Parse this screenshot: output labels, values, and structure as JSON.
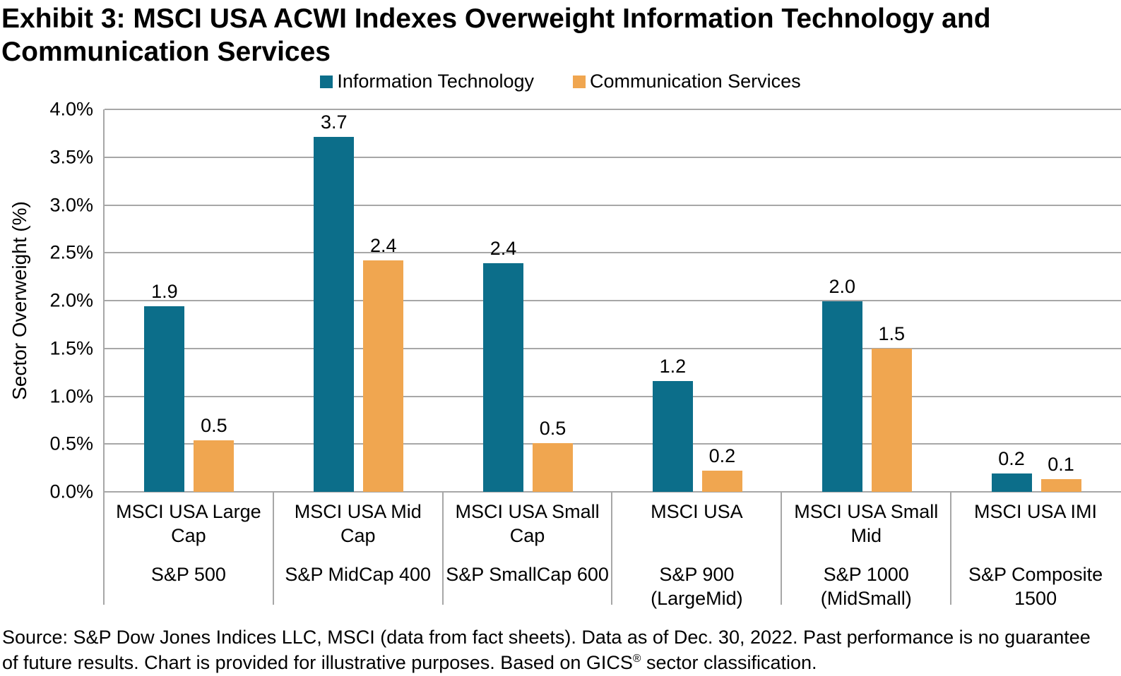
{
  "title": "Exhibit 3: MSCI USA ACWI Indexes Overweight Information Technology and\nCommunication Services",
  "colors": {
    "information_technology": "#0C6E8A",
    "communication_services": "#F0A650",
    "gridline": "#A7A7A7",
    "text": "#000000",
    "background": "#FFFFFF"
  },
  "chart_data": {
    "type": "bar",
    "title": "Exhibit 3: MSCI USA ACWI Indexes Overweight Information Technology and Communication Services",
    "xlabel": "",
    "ylabel": "Sector Overweight (%)",
    "ylim": [
      0,
      4.0
    ],
    "ytick_step": 0.5,
    "yticks_top_to_bottom": [
      "4.0%",
      "3.5%",
      "3.0%",
      "2.5%",
      "2.0%",
      "1.5%",
      "1.0%",
      "0.5%",
      "0.0%"
    ],
    "grid": true,
    "legend_position": "top-center",
    "categories": [
      {
        "index": "MSCI USA Large\nCap",
        "benchmark": "S&P 500"
      },
      {
        "index": "MSCI USA Mid\nCap",
        "benchmark": "S&P MidCap 400"
      },
      {
        "index": "MSCI USA Small\nCap",
        "benchmark": "S&P SmallCap 600"
      },
      {
        "index": "MSCI USA",
        "benchmark": "S&P 900\n(LargeMid)"
      },
      {
        "index": "MSCI USA Small\nMid",
        "benchmark": "S&P 1000\n(MidSmall)"
      },
      {
        "index": "MSCI USA IMI",
        "benchmark": "S&P Composite\n1500"
      }
    ],
    "series": [
      {
        "name": "Information Technology",
        "color": "#0C6E8A",
        "values": [
          1.94,
          3.71,
          2.39,
          1.16,
          1.99,
          0.19
        ],
        "labels": [
          "1.9",
          "3.7",
          "2.4",
          "1.2",
          "2.0",
          "0.2"
        ]
      },
      {
        "name": "Communication Services",
        "color": "#F0A650",
        "values": [
          0.54,
          2.42,
          0.51,
          0.22,
          1.5,
          0.13
        ],
        "labels": [
          "0.5",
          "2.4",
          "0.5",
          "0.2",
          "1.5",
          "0.1"
        ]
      }
    ]
  },
  "footer": {
    "part1": "Source: S&P Dow Jones Indices LLC, MSCI (data from fact sheets). Data as of Dec. 30, 2022. Past performance is no guarantee\nof future results. Chart is provided for illustrative purposes. Based on GICS",
    "reg": "®",
    "part2": " sector classification."
  }
}
